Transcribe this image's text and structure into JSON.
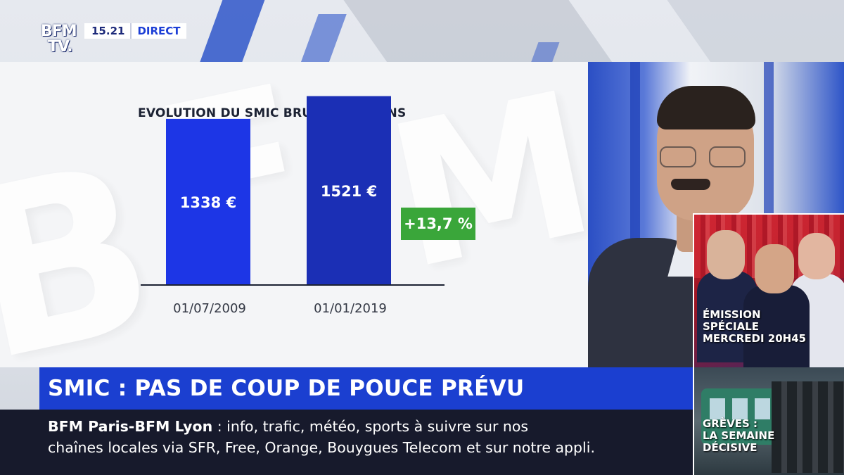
{
  "channel": {
    "logo_line1": "BFM",
    "logo_line2": "TV.",
    "time": "15.21",
    "live_label": "DIRECT"
  },
  "chart_data": {
    "type": "bar",
    "title": "EVOLUTION DU SMIC BRUT SUR 10 ANS",
    "categories": [
      "01/07/2009",
      "01/01/2019"
    ],
    "values": [
      1338,
      1521
    ],
    "value_labels": [
      "1338 €",
      "1521 €"
    ],
    "unit": "€",
    "colors": [
      "#1d36e6",
      "#1b2fb5"
    ],
    "ylim": [
      0,
      1700
    ],
    "grid": false,
    "annotation": "+13,7 %",
    "annotation_color": "#3aa63a"
  },
  "watermark": {
    "letters": [
      "B",
      "F",
      "M"
    ]
  },
  "promo": {
    "line1": "ÉMISSION",
    "line2": "SPÉCIALE",
    "line3": "MERCREDI 20H45"
  },
  "headline": "SMIC : PAS DE COUP DE POUCE PRÉVU",
  "ticker": {
    "source": "BFM Paris-BFM Lyon",
    "separator": " :  ",
    "line1_text": "info, trafic, météo, sports à suivre sur nos",
    "line2_text": "chaînes locales via SFR, Free, Orange, Bouygues Telecom et sur notre appli."
  },
  "greves": {
    "line1": "GRÈVES :",
    "line2": "LA SEMAINE",
    "line3": "DÉCISIVE"
  }
}
